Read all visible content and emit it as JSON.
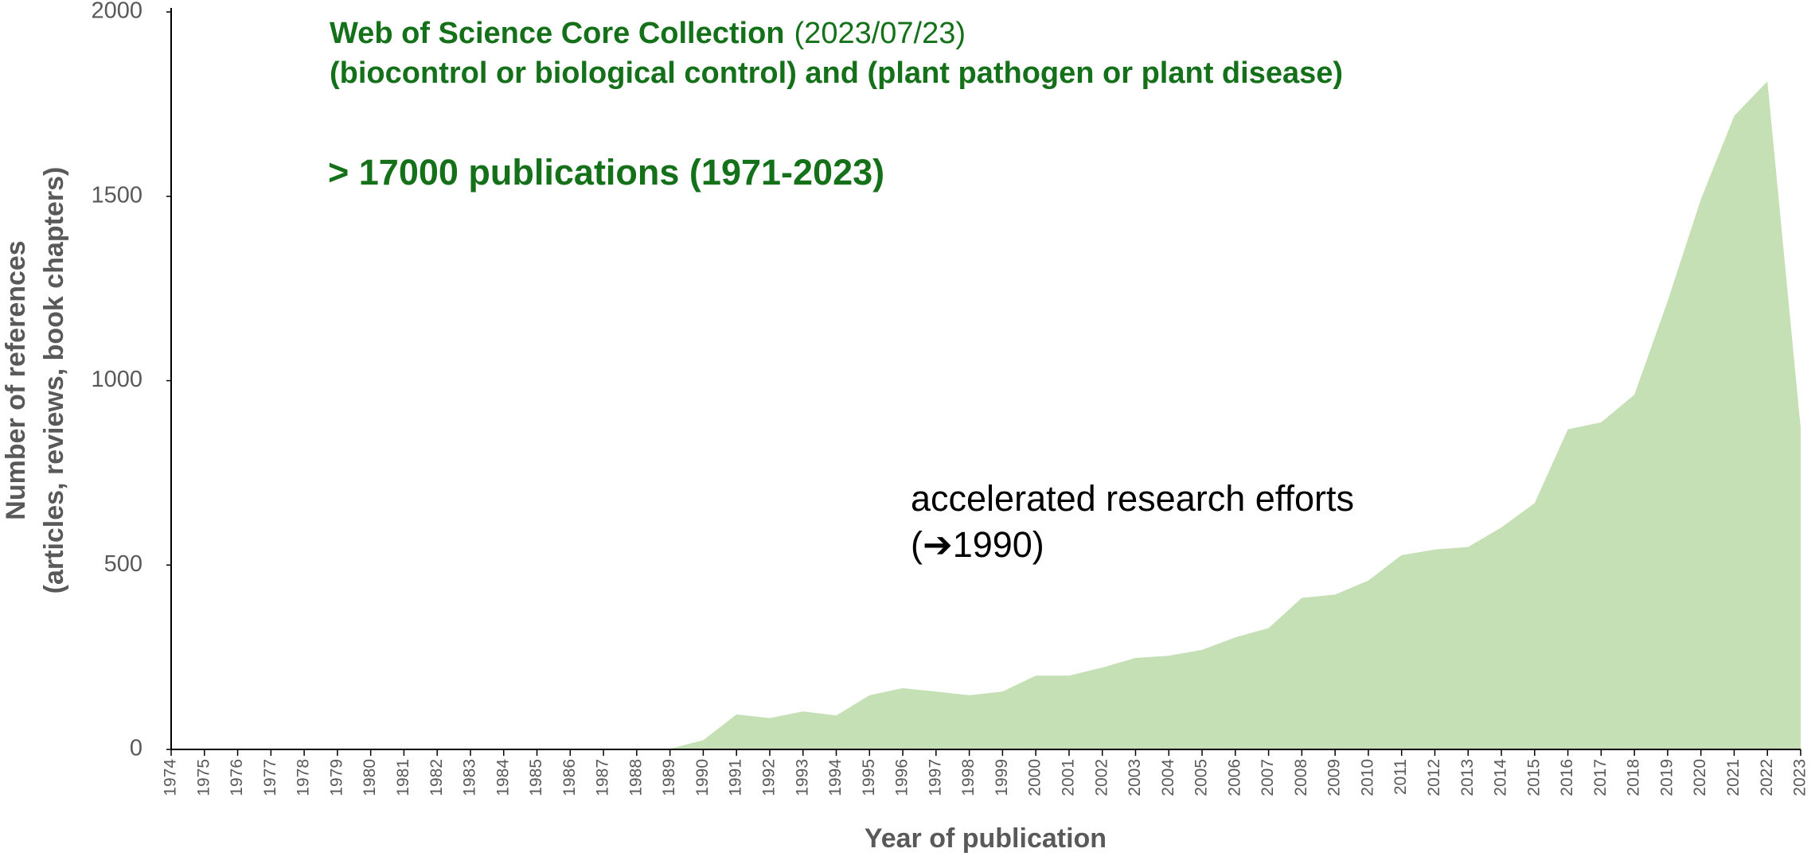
{
  "chart_data": {
    "type": "area",
    "title": "Web of Science Core Collection",
    "subtitle": "(2023/07/23)",
    "annotations": [
      "(biocontrol or biological control) and (plant pathogen or plant disease)",
      "> 17000 publications (1971-2023)",
      "accelerated research efforts",
      "(➔1990)"
    ],
    "xlabel": "Year of publication",
    "ylabel": [
      "Number of references",
      "(articles, reviews, book chapters)"
    ],
    "categories": [
      "1974",
      "1975",
      "1976",
      "1977",
      "1978",
      "1979",
      "1980",
      "1981",
      "1982",
      "1983",
      "1984",
      "1985",
      "1986",
      "1987",
      "1988",
      "1989",
      "1990",
      "1991",
      "1992",
      "1993",
      "1994",
      "1995",
      "1996",
      "1997",
      "1998",
      "1999",
      "2000",
      "2001",
      "2002",
      "2003",
      "2004",
      "2005",
      "2006",
      "2007",
      "2008",
      "2009",
      "2010",
      "2011",
      "2012",
      "2013",
      "2014",
      "2015",
      "2016",
      "2017",
      "2018",
      "2019",
      "2020",
      "2021",
      "2022",
      "2023"
    ],
    "values": [
      0,
      0,
      0,
      0,
      0,
      0,
      0,
      0,
      0,
      0,
      0,
      0,
      1,
      1,
      1,
      2,
      25,
      95,
      85,
      103,
      92,
      147,
      166,
      157,
      147,
      157,
      200,
      200,
      222,
      248,
      254,
      270,
      304,
      329,
      411,
      420,
      458,
      527,
      542,
      549,
      602,
      668,
      868,
      887,
      962,
      1216,
      1492,
      1718,
      1812,
      871
    ],
    "color": "#c5e0b4",
    "ylim": [
      0,
      2000
    ],
    "yticks": [
      0,
      500,
      1000,
      1500,
      2000
    ]
  }
}
